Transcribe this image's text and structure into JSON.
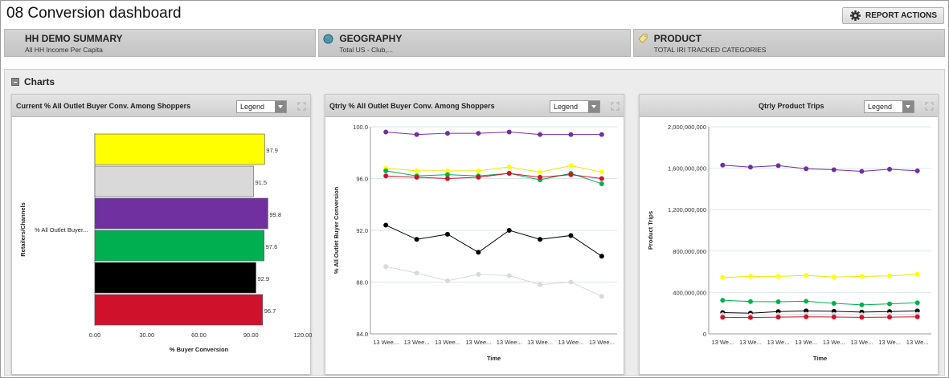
{
  "page_title": "08 Conversion dashboard",
  "report_actions": "REPORT ACTIONS",
  "filters": [
    {
      "head": "HH DEMO SUMMARY",
      "sub": "All HH Income Per Capita"
    },
    {
      "head": "GEOGRAPHY",
      "sub": "Total US - Club,..."
    },
    {
      "head": "PRODUCT",
      "sub": "TOTAL IRI TRACKED CATEGORIES"
    }
  ],
  "charts_section": "Charts",
  "legend_label": "Legend",
  "colors": {
    "yellow": "#ffff00",
    "grey": "#d9d9d9",
    "purple": "#7030a0",
    "green": "#00b050",
    "black": "#000000",
    "red": "#d0112b"
  },
  "chart_data": [
    {
      "type": "bar",
      "title": "Current % All Outlet Buyer Conv. Among Shoppers",
      "xlabel": "% Buyer Conversion",
      "ylabel": "Retailers/Channels",
      "category_label": "% All Outlet Buyer...",
      "xlim": [
        0,
        120
      ],
      "xticks": [
        "0.00",
        "30.00",
        "60.00",
        "90.00",
        "120.00"
      ],
      "bars": [
        {
          "value": 97.9,
          "label": "97.9",
          "color": "#ffff00"
        },
        {
          "value": 91.5,
          "label": "91.5",
          "color": "#d9d9d9"
        },
        {
          "value": 99.8,
          "label": "99.8",
          "color": "#7030a0"
        },
        {
          "value": 97.6,
          "label": "97.6",
          "color": "#00b050"
        },
        {
          "value": 92.9,
          "label": "92.9",
          "color": "#000000"
        },
        {
          "value": 96.7,
          "label": "96.7",
          "color": "#d0112b"
        }
      ]
    },
    {
      "type": "line",
      "title": "Qtrly % All Outlet Buyer Conv. Among Shoppers",
      "xlabel": "Time",
      "ylabel": "% All Outlet Buyer Conversion",
      "ylim": [
        84,
        100
      ],
      "yticks": [
        "84.0",
        "88.0",
        "92.0",
        "96.0",
        "100.0"
      ],
      "categories": [
        "13 Wee...",
        "13 Wee...",
        "13 Wee...",
        "13 Wee...",
        "13 Wee...",
        "13 Wee...",
        "13 Wee...",
        "13 Wee..."
      ],
      "series": [
        {
          "color": "#7030a0",
          "values": [
            99.6,
            99.4,
            99.5,
            99.5,
            99.6,
            99.4,
            99.4,
            99.4
          ]
        },
        {
          "color": "#ffff00",
          "values": [
            96.8,
            96.6,
            96.6,
            96.6,
            96.9,
            96.5,
            97.0,
            96.5
          ]
        },
        {
          "color": "#00b050",
          "values": [
            96.6,
            96.2,
            96.3,
            96.2,
            96.4,
            95.9,
            96.4,
            95.6
          ]
        },
        {
          "color": "#d0112b",
          "values": [
            96.2,
            96.1,
            96.0,
            96.1,
            96.4,
            96.1,
            96.3,
            96.0
          ]
        },
        {
          "color": "#000000",
          "values": [
            92.4,
            91.3,
            91.7,
            90.3,
            92.0,
            91.3,
            91.6,
            90.0
          ]
        },
        {
          "color": "#d9d9d9",
          "values": [
            89.2,
            88.7,
            88.1,
            88.6,
            88.5,
            87.8,
            88.0,
            86.9
          ]
        }
      ]
    },
    {
      "type": "line",
      "title": "Qtrly Product Trips",
      "xlabel": "Time",
      "ylabel": "Product Trips",
      "ylim": [
        0,
        2000000000
      ],
      "yticks": [
        "0",
        "400,000,000",
        "800,000,000",
        "1,200,000,000",
        "1,600,000,000",
        "2,000,000,000"
      ],
      "categories": [
        "13 We...",
        "13 We...",
        "13 We...",
        "13 We...",
        "13 We...",
        "13 We...",
        "13 We...",
        "13 We..."
      ],
      "series": [
        {
          "color": "#7030a0",
          "values": [
            1630000000,
            1610000000,
            1625000000,
            1595000000,
            1585000000,
            1570000000,
            1590000000,
            1575000000
          ]
        },
        {
          "color": "#ffff00",
          "values": [
            545000000,
            555000000,
            555000000,
            565000000,
            548000000,
            555000000,
            560000000,
            575000000
          ]
        },
        {
          "color": "#00b050",
          "values": [
            325000000,
            312000000,
            310000000,
            315000000,
            295000000,
            280000000,
            290000000,
            300000000
          ]
        },
        {
          "color": "#000000",
          "values": [
            205000000,
            200000000,
            215000000,
            222000000,
            218000000,
            210000000,
            215000000,
            222000000
          ]
        },
        {
          "color": "#d9d9d9",
          "values": [
            185000000,
            180000000,
            185000000,
            190000000,
            188000000,
            185000000,
            188000000,
            190000000
          ]
        },
        {
          "color": "#d0112b",
          "values": [
            160000000,
            158000000,
            162000000,
            165000000,
            163000000,
            160000000,
            162000000,
            165000000
          ]
        }
      ]
    }
  ]
}
